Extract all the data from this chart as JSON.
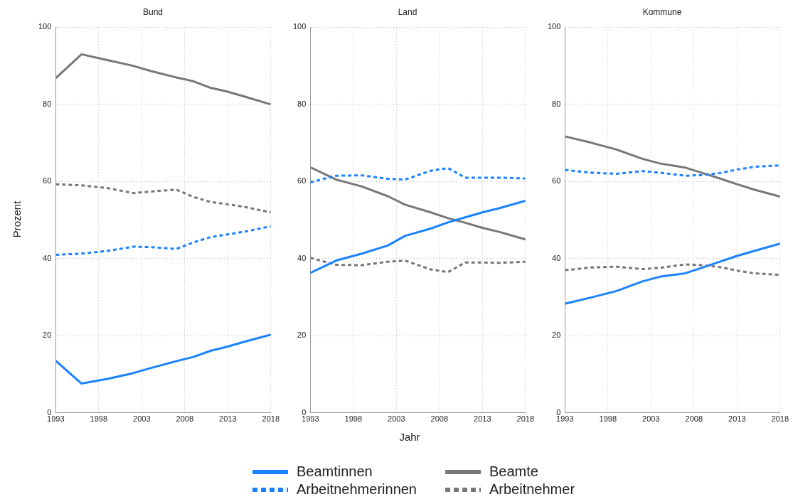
{
  "chart_data": [
    {
      "type": "line",
      "title": "Bund",
      "ylabel": "Prozent",
      "x": [
        1993,
        1996,
        1999,
        2002,
        2004,
        2007,
        2009,
        2011,
        2013,
        2015,
        2018
      ],
      "xlim": [
        1993,
        2018
      ],
      "xticks": [
        1993,
        1998,
        2003,
        2008,
        2013,
        2018
      ],
      "ylim": [
        0,
        100
      ],
      "yticks": [
        0,
        20,
        40,
        60,
        80,
        100
      ],
      "grid": true,
      "legend": "bottom",
      "series": [
        {
          "name": "Beamtinnen",
          "color": "#1a82ff",
          "line_style": "solid",
          "values": [
            13.5,
            7.6,
            8.8,
            10.3,
            11.6,
            13.4,
            14.5,
            16.1,
            17.2,
            18.5,
            20.3
          ]
        },
        {
          "name": "Arbeitnehmerinnen",
          "color": "#1a82ff",
          "line_style": "dashed",
          "values": [
            41,
            41.3,
            42,
            43.1,
            43,
            42.5,
            44.2,
            45.6,
            46.3,
            47,
            48.4
          ]
        },
        {
          "name": "Beamte",
          "color": "#777777",
          "line_style": "solid",
          "values": [
            86.8,
            93,
            91.5,
            90,
            88.7,
            87,
            86,
            84.3,
            83.3,
            82,
            80
          ]
        },
        {
          "name": "Arbeitnehmer",
          "color": "#777777",
          "line_style": "dashed",
          "values": [
            59.3,
            59,
            58.3,
            57,
            57.4,
            57.9,
            56,
            54.7,
            54.1,
            53.4,
            52
          ]
        }
      ]
    },
    {
      "type": "line",
      "title": "Land",
      "xlabel": "Jahr",
      "x": [
        1993,
        1996,
        1999,
        2002,
        2004,
        2007,
        2009,
        2011,
        2013,
        2015,
        2018
      ],
      "xlim": [
        1993,
        2018
      ],
      "xticks": [
        1993,
        1998,
        2003,
        2008,
        2013,
        2018
      ],
      "ylim": [
        0,
        100
      ],
      "yticks": [
        0,
        20,
        40,
        60,
        80,
        100
      ],
      "grid": true,
      "series": [
        {
          "name": "Beamtinnen",
          "color": "#1a82ff",
          "line_style": "solid",
          "values": [
            36.3,
            39.5,
            41.3,
            43.4,
            45.9,
            47.8,
            49.4,
            50.7,
            52,
            53.1,
            55
          ]
        },
        {
          "name": "Arbeitnehmerinnen",
          "color": "#1a82ff",
          "line_style": "dashed",
          "values": [
            59.8,
            61.5,
            61.6,
            60.7,
            60.5,
            62.8,
            63.5,
            61,
            61,
            61,
            60.8
          ]
        },
        {
          "name": "Beamte",
          "color": "#777777",
          "line_style": "solid",
          "values": [
            63.7,
            60.5,
            58.7,
            56.2,
            54,
            52,
            50.5,
            49.3,
            48,
            46.9,
            45
          ]
        },
        {
          "name": "Arbeitnehmer",
          "color": "#777777",
          "line_style": "dashed",
          "values": [
            40.2,
            38.4,
            38.3,
            39.2,
            39.5,
            37.2,
            36.5,
            39,
            39,
            38.9,
            39.2
          ]
        }
      ]
    },
    {
      "type": "line",
      "title": "Kommune",
      "x": [
        1993,
        1996,
        1999,
        2002,
        2004,
        2007,
        2009,
        2011,
        2013,
        2015,
        2018
      ],
      "xlim": [
        1993,
        2018
      ],
      "xticks": [
        1993,
        1998,
        2003,
        2008,
        2013,
        2018
      ],
      "ylim": [
        0,
        100
      ],
      "yticks": [
        0,
        20,
        40,
        60,
        80,
        100
      ],
      "grid": true,
      "series": [
        {
          "name": "Beamtinnen",
          "color": "#1a82ff",
          "line_style": "solid",
          "values": [
            28.3,
            29.9,
            31.6,
            34.1,
            35.3,
            36.2,
            37.7,
            39.2,
            40.7,
            42,
            43.9
          ]
        },
        {
          "name": "Arbeitnehmerinnen",
          "color": "#1a82ff",
          "line_style": "dashed",
          "values": [
            63,
            62.3,
            62,
            62.7,
            62.3,
            61.5,
            61.7,
            62.2,
            63.1,
            63.8,
            64.2
          ]
        },
        {
          "name": "Beamte",
          "color": "#777777",
          "line_style": "solid",
          "values": [
            71.7,
            70.1,
            68.3,
            65.9,
            64.7,
            63.6,
            62.2,
            60.8,
            59.3,
            57.9,
            56.1
          ]
        },
        {
          "name": "Arbeitnehmer",
          "color": "#777777",
          "line_style": "dashed",
          "values": [
            37,
            37.7,
            37.9,
            37.3,
            37.6,
            38.5,
            38.3,
            37.8,
            36.9,
            36.2,
            35.8
          ]
        }
      ]
    }
  ]
}
